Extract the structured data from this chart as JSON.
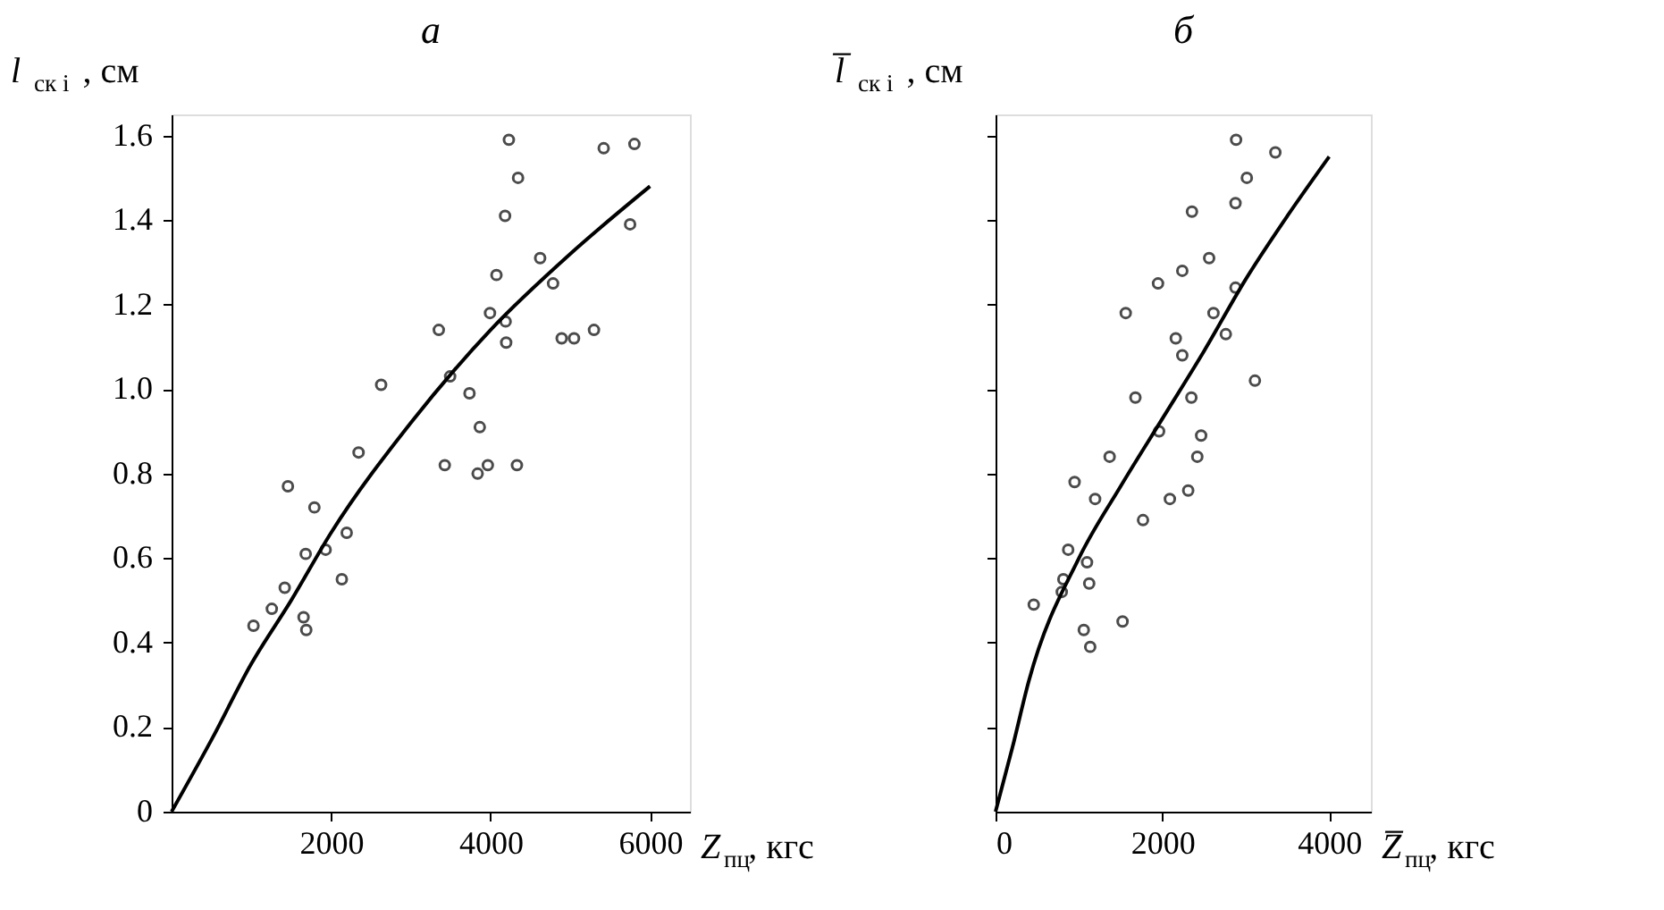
{
  "chart_data": [
    {
      "type": "scatter",
      "title": "а",
      "xlabel": "Z$_{пц}$, кгс",
      "ylabel": "l$_{ск i}$, см",
      "xlim": [
        0,
        6500
      ],
      "ylim": [
        0,
        1.65
      ],
      "xticks": [
        2000,
        4000,
        6000
      ],
      "yticks": [
        0,
        0.2,
        0.4,
        0.6,
        0.8,
        {
          "value": 1,
          "label": "1.0"
        },
        1.2,
        1.4,
        1.6
      ],
      "grid": false,
      "series": [
        {
          "marker": "circle",
          "color": "#000000",
          "x": [
            1027,
            1257,
            1419,
            1459,
            1655,
            1689,
            1682,
            1791,
            1932,
            2135,
            2196,
            2345,
            2628,
            3351,
            3426,
            3493,
            3736,
            3865,
            3838,
            3966,
            3993,
            4074,
            4182,
            4189,
            4196,
            4230,
            4331,
            4345,
            4622,
            4784,
            4892,
            5047,
            5297,
            5419,
            5750,
            5804
          ],
          "values": [
            0.44,
            0.48,
            0.53,
            0.77,
            0.46,
            0.43,
            0.61,
            0.72,
            0.62,
            0.55,
            0.66,
            0.85,
            1.01,
            1.14,
            0.82,
            1.03,
            0.99,
            0.91,
            0.8,
            0.82,
            1.18,
            1.27,
            1.41,
            1.16,
            1.11,
            1.59,
            0.82,
            1.5,
            1.31,
            1.25,
            1.12,
            1.12,
            1.14,
            1.57,
            1.39,
            1.58
          ]
        },
        {
          "type": "line",
          "marker": "none",
          "color": "#000000",
          "line_style": "solid",
          "x": [
            0,
            500,
            1000,
            1500,
            2000,
            3000,
            4000,
            5000,
            6000
          ],
          "values": [
            0,
            0.17,
            0.35,
            0.5,
            0.66,
            0.92,
            1.14,
            1.32,
            1.48
          ]
        }
      ]
    },
    {
      "type": "scatter",
      "title": "б",
      "xlabel": "Z̅$_{пц}$, кгс",
      "ylabel": "l̅$_{ск i}$, см",
      "xlim": [
        0,
        4500
      ],
      "ylim": [
        0,
        1.65
      ],
      "xticks": [
        0,
        2000,
        4000
      ],
      "yticks": [
        0.2,
        0.4,
        0.6,
        0.8,
        1,
        1.2,
        1.4,
        1.6
      ],
      "tick_labels": "x",
      "grid": false,
      "series": [
        {
          "marker": "circle",
          "color": "#000000",
          "x": [
            458,
            794,
            813,
            871,
            948,
            1058,
            1097,
            1123,
            1135,
            1194,
            1368,
            1523,
            1561,
            1677,
            1768,
            1948,
            1961,
            2090,
            2161,
            2239,
            2239,
            2310,
            2348,
            2355,
            2419,
            2465,
            2561,
            2613,
            2761,
            2877,
            2877,
            2884,
            3013,
            3110,
            3355
          ],
          "values": [
            0.49,
            0.52,
            0.55,
            0.62,
            0.78,
            0.43,
            0.59,
            0.54,
            0.39,
            0.74,
            0.84,
            0.45,
            1.18,
            0.98,
            0.69,
            1.25,
            0.9,
            0.74,
            1.12,
            1.28,
            1.08,
            0.76,
            0.98,
            1.42,
            0.84,
            0.89,
            1.31,
            1.18,
            1.13,
            1.24,
            1.44,
            1.59,
            1.5,
            1.02,
            1.56
          ]
        },
        {
          "type": "line",
          "marker": "none",
          "color": "#000000",
          "line_style": "solid",
          "x": [
            0,
            200,
            400,
            1000,
            1500,
            2000,
            2500,
            3000,
            3500,
            4000
          ],
          "values": [
            0,
            0.15,
            0.31,
            0.6,
            0.77,
            0.93,
            1.09,
            1.26,
            1.41,
            1.55
          ]
        }
      ]
    }
  ]
}
